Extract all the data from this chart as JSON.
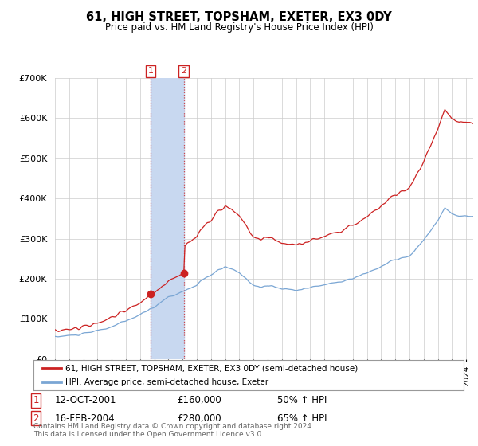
{
  "title": "61, HIGH STREET, TOPSHAM, EXETER, EX3 0DY",
  "subtitle": "Price paid vs. HM Land Registry's House Price Index (HPI)",
  "legend_line1": "61, HIGH STREET, TOPSHAM, EXETER, EX3 0DY (semi-detached house)",
  "legend_line2": "HPI: Average price, semi-detached house, Exeter",
  "transaction1_date": "12-OCT-2001",
  "transaction1_price": 160000,
  "transaction1_pct": "50% ↑ HPI",
  "transaction2_date": "16-FEB-2004",
  "transaction2_price": 280000,
  "transaction2_pct": "65% ↑ HPI",
  "footnote": "Contains HM Land Registry data © Crown copyright and database right 2024.\nThis data is licensed under the Open Government Licence v3.0.",
  "hpi_color": "#7aa6d4",
  "price_color": "#cc2222",
  "span_color": "#c8d8f0",
  "background_color": "#ffffff",
  "ylim": [
    0,
    700000
  ],
  "xstart": 1995.0,
  "xend": 2024.5
}
